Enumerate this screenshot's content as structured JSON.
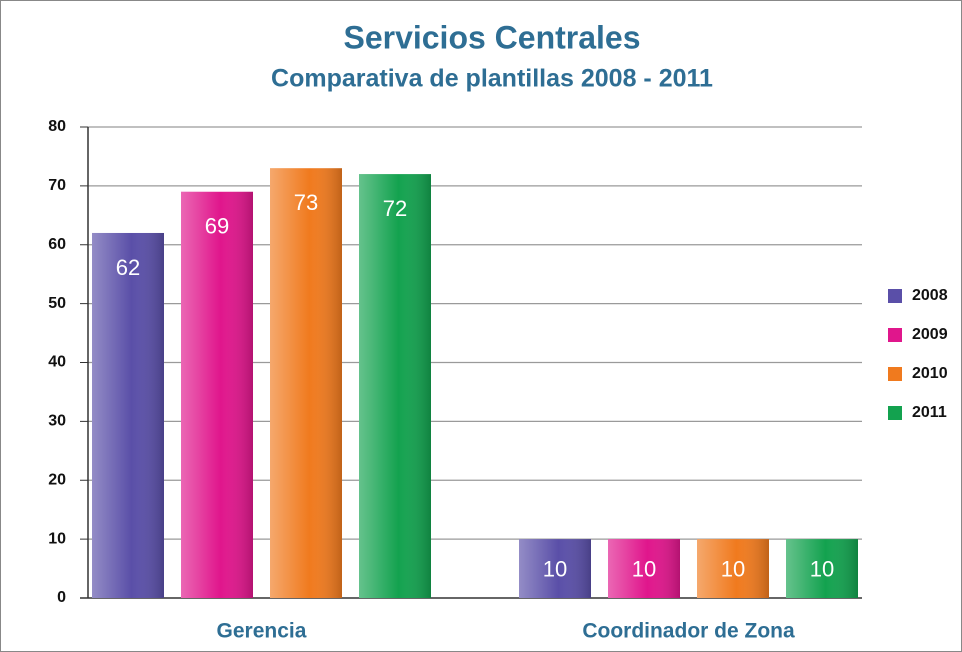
{
  "chart_data": {
    "type": "bar",
    "title": "Servicios Centrales",
    "subtitle": "Comparativa de plantillas 2008 - 2011",
    "categories": [
      "Gerencia",
      "Coordinador de Zona"
    ],
    "series": [
      {
        "name": "2008",
        "color": "#5a4fa8",
        "values": [
          62,
          10
        ]
      },
      {
        "name": "2009",
        "color": "#e0168c",
        "values": [
          69,
          10
        ]
      },
      {
        "name": "2010",
        "color": "#f07a1e",
        "values": [
          73,
          10
        ]
      },
      {
        "name": "2011",
        "color": "#13a24f",
        "values": [
          72,
          10
        ]
      }
    ],
    "ylim": [
      0,
      80
    ],
    "yticks": [
      0,
      10,
      20,
      30,
      40,
      50,
      60,
      70,
      80
    ],
    "grid": true,
    "legend": "right"
  }
}
